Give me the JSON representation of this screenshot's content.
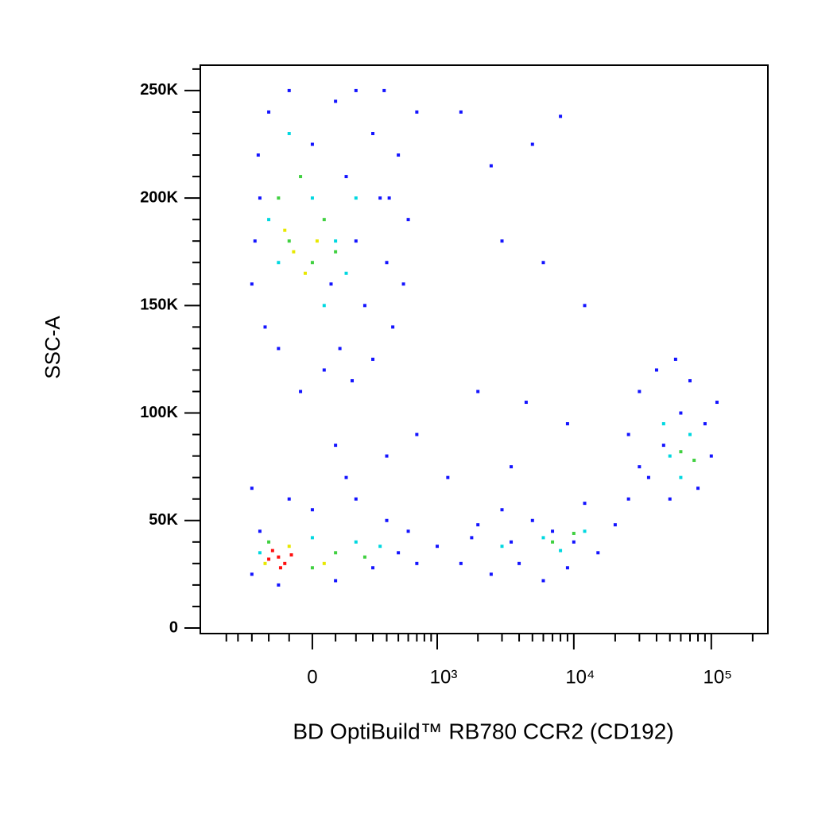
{
  "chart_data": {
    "type": "scatter",
    "xlabel": "BD OptiBuild™ RB780 CCR2 (CD192)",
    "ylabel": "SSC-A",
    "xscale": "biexponential",
    "xlim": [
      -800,
      258000
    ],
    "ylim": [
      -2600,
      261800
    ],
    "xticks": [
      0,
      {
        "value": 1000,
        "label": "10³"
      },
      {
        "value": 10000,
        "label": "10⁴"
      },
      {
        "value": 100000,
        "label": "10⁵"
      }
    ],
    "xminorticks": [
      -500,
      -400,
      -300,
      -200,
      -100,
      100,
      200,
      300,
      400,
      500,
      600,
      700,
      800,
      900,
      2000,
      3000,
      4000,
      5000,
      6000,
      7000,
      8000,
      9000,
      20000,
      30000,
      40000,
      50000,
      60000,
      70000,
      80000,
      90000,
      200000
    ],
    "yticks": [
      0,
      {
        "value": 50000,
        "label": "50K"
      },
      {
        "value": 100000,
        "label": "100K"
      },
      {
        "value": 150000,
        "label": "150K"
      },
      {
        "value": 200000,
        "label": "200K"
      },
      {
        "value": 250000,
        "label": "250K"
      }
    ],
    "yminorticks": [
      10000,
      20000,
      30000,
      40000,
      60000,
      70000,
      80000,
      90000,
      110000,
      120000,
      130000,
      140000,
      160000,
      170000,
      180000,
      190000,
      210000,
      220000,
      230000,
      240000,
      260000
    ],
    "series": [
      {
        "color": "#1414ff",
        "x": [
          -300,
          -250,
          -200,
          -150,
          -100,
          0,
          50,
          100,
          150,
          200,
          250,
          300,
          350,
          400,
          450,
          500,
          -280,
          -220,
          120,
          200,
          600,
          700,
          80,
          -50,
          300,
          380,
          550,
          -260,
          180,
          420,
          2500,
          5000,
          8000,
          12000,
          3000,
          6000,
          1500,
          2000,
          4500,
          9000,
          1200,
          700,
          400,
          100,
          3500,
          -300,
          -250,
          -150,
          0,
          100,
          200,
          300,
          400,
          500,
          600,
          -300,
          150,
          700,
          -100,
          1000,
          1500,
          2000,
          2500,
          3000,
          4000,
          5000,
          6000,
          7000,
          9000,
          12000,
          15000,
          20000,
          3500,
          1800,
          25000,
          10000,
          25000,
          30000,
          35000,
          40000,
          50000,
          60000,
          70000,
          80000,
          100000,
          90000,
          45000,
          30000,
          110000,
          55000
        ],
        "y": [
          160000,
          200000,
          240000,
          130000,
          250000,
          225000,
          120000,
          245000,
          210000,
          180000,
          150000,
          230000,
          200000,
          170000,
          140000,
          220000,
          180000,
          140000,
          130000,
          250000,
          190000,
          240000,
          160000,
          110000,
          125000,
          250000,
          160000,
          220000,
          115000,
          200000,
          215000,
          225000,
          238000,
          150000,
          180000,
          170000,
          240000,
          110000,
          105000,
          95000,
          70000,
          90000,
          80000,
          85000,
          75000,
          25000,
          45000,
          20000,
          55000,
          22000,
          60000,
          28000,
          50000,
          35000,
          45000,
          65000,
          70000,
          30000,
          60000,
          38000,
          30000,
          48000,
          25000,
          55000,
          30000,
          50000,
          22000,
          45000,
          28000,
          58000,
          35000,
          48000,
          40000,
          42000,
          60000,
          40000,
          90000,
          110000,
          70000,
          120000,
          60000,
          100000,
          115000,
          65000,
          80000,
          95000,
          85000,
          75000,
          105000,
          125000
        ]
      },
      {
        "color": "#00d8e0",
        "x": [
          -150,
          0,
          100,
          -200,
          50,
          200,
          -100,
          150,
          -250,
          200,
          350,
          0,
          3000,
          6000,
          12000,
          8000,
          50000,
          70000,
          60000,
          45000
        ],
        "y": [
          170000,
          200000,
          180000,
          190000,
          150000,
          200000,
          230000,
          165000,
          35000,
          40000,
          38000,
          42000,
          38000,
          42000,
          45000,
          36000,
          80000,
          90000,
          70000,
          95000
        ]
      },
      {
        "color": "#40d040",
        "x": [
          -100,
          0,
          -150,
          50,
          -50,
          100,
          -200,
          100,
          250,
          0,
          7000,
          10000,
          60000,
          75000
        ],
        "y": [
          180000,
          170000,
          200000,
          190000,
          210000,
          175000,
          40000,
          35000,
          33000,
          28000,
          40000,
          44000,
          82000,
          78000
        ]
      },
      {
        "color": "#e8e800",
        "x": [
          -80,
          -30,
          -120,
          20,
          -100,
          50,
          -220
        ],
        "y": [
          175000,
          165000,
          185000,
          180000,
          38000,
          30000,
          30000
        ]
      },
      {
        "color": "#ff1010",
        "x": [
          -150,
          -120,
          -180,
          -90,
          -200,
          -140
        ],
        "y": [
          33000,
          30000,
          36000,
          34000,
          32000,
          28000
        ]
      }
    ]
  }
}
